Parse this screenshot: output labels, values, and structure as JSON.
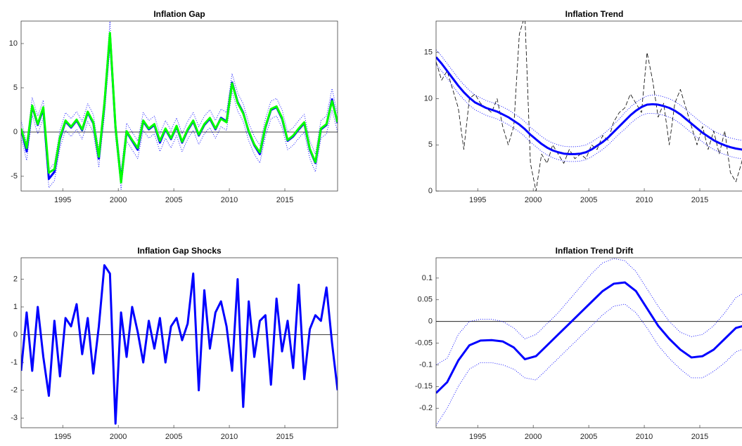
{
  "chart_data": [
    {
      "type": "line",
      "title": "Inflation Gap",
      "x": [
        1991.25,
        1991.75,
        1992.25,
        1992.75,
        1993.25,
        1993.75,
        1994.25,
        1994.75,
        1995.25,
        1995.75,
        1996.25,
        1996.75,
        1997.25,
        1997.75,
        1998.25,
        1998.75,
        1999.25,
        1999.75,
        2000.25,
        2000.75,
        2001.25,
        2001.75,
        2002.25,
        2002.75,
        2003.25,
        2003.75,
        2004.25,
        2004.75,
        2005.25,
        2005.75,
        2006.25,
        2006.75,
        2007.25,
        2007.75,
        2008.25,
        2008.75,
        2009.25,
        2009.75,
        2010.25,
        2010.75,
        2011.25,
        2011.75,
        2012.25,
        2012.75,
        2013.25,
        2013.75,
        2014.25,
        2014.75,
        2015.25,
        2015.75,
        2016.25,
        2016.75,
        2017.25,
        2017.75,
        2018.25,
        2018.75,
        2019.25,
        2019.75
      ],
      "series": [
        {
          "color": "#0000ff",
          "style": "dotted",
          "values": [
            1.3,
            -1.2,
            3.9,
            1.8,
            3.6,
            -4.3,
            -3.5,
            0.2,
            2.2,
            1.5,
            2.3,
            1.2,
            3.2,
            2.0,
            -2.0,
            4.2,
            12.5,
            1.5,
            -4.5,
            1.0,
            0.0,
            -1.0,
            2.2,
            1.3,
            1.8,
            -0.2,
            1.3,
            0.2,
            1.6,
            -0.2,
            1.2,
            2.2,
            0.6,
            1.8,
            2.5,
            1.3,
            2.6,
            2.2,
            6.6,
            4.4,
            3.2,
            1.0,
            -0.5,
            -1.5,
            1.5,
            3.5,
            3.8,
            2.5,
            0.0,
            0.5,
            1.3,
            2.0,
            -1.0,
            -2.5,
            1.3,
            1.8,
            4.9,
            2.0
          ]
        },
        {
          "color": "#0000ff",
          "style": "dotted",
          "values": [
            -0.7,
            -3.2,
            1.9,
            -0.2,
            1.6,
            -6.3,
            -5.5,
            -1.8,
            0.2,
            -0.5,
            0.3,
            -0.8,
            1.2,
            0.0,
            -4.0,
            1.8,
            9.5,
            -0.5,
            -6.5,
            -1.0,
            -2.0,
            -3.0,
            0.2,
            -0.7,
            -0.2,
            -2.2,
            -0.7,
            -1.8,
            -0.4,
            -2.2,
            -0.8,
            0.2,
            -1.4,
            -0.2,
            0.5,
            -0.7,
            0.6,
            0.2,
            4.6,
            2.4,
            1.2,
            -1.0,
            -2.5,
            -3.5,
            -0.5,
            1.5,
            1.8,
            0.5,
            -2.0,
            -1.5,
            -0.7,
            0.0,
            -3.0,
            -4.5,
            -0.7,
            -0.2,
            2.5,
            0.0
          ]
        },
        {
          "color": "#0000ff",
          "style": "thick",
          "values": [
            0.3,
            -2.2,
            2.9,
            0.8,
            2.6,
            -5.3,
            -4.5,
            -0.8,
            1.2,
            0.5,
            1.3,
            0.2,
            2.2,
            1.0,
            -3.0,
            3.0,
            11.0,
            0.5,
            -5.5,
            0.0,
            -1.0,
            -2.0,
            1.2,
            0.3,
            0.8,
            -1.2,
            0.3,
            -0.8,
            0.6,
            -1.2,
            0.2,
            1.2,
            -0.4,
            0.8,
            1.5,
            0.3,
            1.6,
            1.2,
            5.6,
            3.4,
            2.2,
            0.0,
            -1.5,
            -2.5,
            0.5,
            2.5,
            2.8,
            1.5,
            -1.0,
            -0.5,
            0.3,
            1.0,
            -2.0,
            -3.5,
            0.3,
            0.8,
            3.7,
            1.0
          ]
        },
        {
          "color": "#00ff00",
          "style": "thick",
          "values": [
            0.4,
            -1.8,
            3.0,
            0.9,
            2.8,
            -4.6,
            -4.2,
            -0.6,
            1.3,
            0.6,
            1.4,
            0.3,
            2.3,
            1.1,
            -2.8,
            3.2,
            11.2,
            0.6,
            -5.7,
            0.1,
            -0.9,
            -1.8,
            1.3,
            0.4,
            0.9,
            -1.0,
            0.4,
            -0.7,
            0.7,
            -1.1,
            0.3,
            1.3,
            -0.3,
            0.9,
            1.6,
            0.4,
            1.5,
            1.1,
            5.5,
            3.3,
            2.1,
            0.1,
            -1.4,
            -2.3,
            0.6,
            2.6,
            2.9,
            1.6,
            -0.9,
            -0.4,
            0.4,
            1.1,
            -1.9,
            -3.4,
            0.4,
            0.9,
            3.5,
            1.1
          ]
        }
      ],
      "xlim": [
        1991.25,
        2019.75
      ],
      "xticks": [
        1995,
        2000,
        2005,
        2010,
        2015
      ],
      "ylim": [
        -6.67,
        12.54
      ],
      "yticks": [
        -5,
        0,
        5,
        10
      ],
      "zero_line": true
    },
    {
      "type": "line",
      "title": "Inflation Trend",
      "x": [
        1991.25,
        1991.75,
        1992.25,
        1992.75,
        1993.25,
        1993.75,
        1994.25,
        1994.75,
        1995.25,
        1995.75,
        1996.25,
        1996.75,
        1997.25,
        1997.75,
        1998.25,
        1998.75,
        1999.25,
        1999.75,
        2000.25,
        2000.75,
        2001.25,
        2001.75,
        2002.25,
        2002.75,
        2003.25,
        2003.75,
        2004.25,
        2004.75,
        2005.25,
        2005.75,
        2006.25,
        2006.75,
        2007.25,
        2007.75,
        2008.25,
        2008.75,
        2009.25,
        2009.75,
        2010.25,
        2010.75,
        2011.25,
        2011.75,
        2012.25,
        2012.75,
        2013.25,
        2013.75,
        2014.25,
        2014.75,
        2015.25,
        2015.75,
        2016.25,
        2016.75,
        2017.25,
        2017.75,
        2018.25,
        2018.75,
        2019.25,
        2019.75
      ],
      "series": [
        {
          "color": "#000000",
          "style": "dashed",
          "values": [
            14.0,
            12.0,
            13.0,
            11.0,
            9.0,
            4.5,
            10.0,
            10.5,
            9.5,
            9.0,
            8.5,
            10.0,
            7.0,
            5.0,
            7.0,
            17.0,
            19.0,
            3.0,
            0.0,
            4.0,
            3.0,
            5.0,
            4.0,
            3.0,
            4.5,
            3.5,
            4.0,
            3.5,
            5.0,
            4.5,
            6.0,
            5.5,
            7.5,
            8.5,
            9.0,
            10.5,
            9.5,
            8.5,
            15.0,
            12.0,
            8.0,
            9.5,
            5.0,
            9.5,
            11.0,
            9.0,
            7.0,
            5.0,
            7.0,
            4.5,
            6.5,
            4.0,
            6.5,
            2.0,
            1.0,
            3.0,
            5.5,
            5.0
          ]
        },
        {
          "color": "#0000ff",
          "style": "dotted",
          "values": [
            15.3,
            14.6,
            13.8,
            13.0,
            12.2,
            11.5,
            10.9,
            10.4,
            10.1,
            9.8,
            9.6,
            9.4,
            9.1,
            8.8,
            8.4,
            8.0,
            7.5,
            6.9,
            6.4,
            5.9,
            5.5,
            5.2,
            5.0,
            4.85,
            4.8,
            4.8,
            4.85,
            5.0,
            5.3,
            5.7,
            6.1,
            6.6,
            7.2,
            7.8,
            8.5,
            9.1,
            9.6,
            10.0,
            10.3,
            10.4,
            10.35,
            10.2,
            10.0,
            9.7,
            9.3,
            8.8,
            8.3,
            7.8,
            7.3,
            6.9,
            6.5,
            6.2,
            5.95,
            5.75,
            5.6,
            5.5,
            5.45,
            5.4
          ]
        },
        {
          "color": "#0000ff",
          "style": "dotted",
          "values": [
            13.7,
            13.0,
            12.2,
            11.4,
            10.6,
            9.9,
            9.3,
            8.8,
            8.5,
            8.2,
            8.0,
            7.8,
            7.5,
            7.2,
            6.8,
            6.4,
            5.9,
            5.3,
            4.8,
            4.3,
            3.9,
            3.6,
            3.4,
            3.25,
            3.2,
            3.2,
            3.25,
            3.4,
            3.7,
            4.1,
            4.5,
            5.0,
            5.6,
            6.2,
            6.7,
            7.3,
            7.8,
            8.2,
            8.4,
            8.4,
            8.35,
            8.2,
            8.0,
            7.7,
            7.3,
            6.8,
            6.3,
            5.8,
            5.3,
            4.9,
            4.5,
            4.2,
            3.95,
            3.75,
            3.6,
            3.5,
            3.45,
            3.4
          ]
        },
        {
          "color": "#0000ff",
          "style": "thick",
          "values": [
            14.5,
            13.8,
            13.0,
            12.2,
            11.4,
            10.7,
            10.1,
            9.6,
            9.3,
            9.0,
            8.8,
            8.6,
            8.3,
            8.0,
            7.6,
            7.2,
            6.7,
            6.1,
            5.6,
            5.1,
            4.7,
            4.4,
            4.2,
            4.05,
            4.0,
            4.0,
            4.05,
            4.2,
            4.5,
            4.9,
            5.3,
            5.8,
            6.4,
            7.0,
            7.6,
            8.2,
            8.7,
            9.1,
            9.35,
            9.4,
            9.35,
            9.2,
            9.0,
            8.7,
            8.3,
            7.8,
            7.3,
            6.8,
            6.3,
            5.9,
            5.5,
            5.2,
            4.95,
            4.75,
            4.6,
            4.5,
            4.45,
            4.4
          ]
        }
      ],
      "xlim": [
        1991.25,
        2019.75
      ],
      "xticks": [
        1995,
        2000,
        2005,
        2010,
        2015
      ],
      "ylim": [
        0,
        18.4
      ],
      "yticks": [
        0,
        5,
        10,
        15
      ],
      "zero_line": false
    },
    {
      "type": "line",
      "title": "Inflation Gap Shocks",
      "x": [
        1991.25,
        1991.75,
        1992.25,
        1992.75,
        1993.25,
        1993.75,
        1994.25,
        1994.75,
        1995.25,
        1995.75,
        1996.25,
        1996.75,
        1997.25,
        1997.75,
        1998.25,
        1998.75,
        1999.25,
        1999.75,
        2000.25,
        2000.75,
        2001.25,
        2001.75,
        2002.25,
        2002.75,
        2003.25,
        2003.75,
        2004.25,
        2004.75,
        2005.25,
        2005.75,
        2006.25,
        2006.75,
        2007.25,
        2007.75,
        2008.25,
        2008.75,
        2009.25,
        2009.75,
        2010.25,
        2010.75,
        2011.25,
        2011.75,
        2012.25,
        2012.75,
        2013.25,
        2013.75,
        2014.25,
        2014.75,
        2015.25,
        2015.75,
        2016.25,
        2016.75,
        2017.25,
        2017.75,
        2018.25,
        2018.75,
        2019.25,
        2019.75
      ],
      "series": [
        {
          "color": "#0000ff",
          "style": "thick",
          "values": [
            -1.3,
            0.8,
            -1.3,
            1.0,
            -0.8,
            -2.2,
            0.5,
            -1.5,
            0.6,
            0.3,
            1.1,
            -0.7,
            0.6,
            -1.4,
            0.3,
            2.5,
            2.2,
            -3.2,
            0.8,
            -0.8,
            1.0,
            0.1,
            -1.0,
            0.5,
            -0.5,
            0.6,
            -1.0,
            0.3,
            0.6,
            -0.2,
            0.4,
            2.2,
            -2.0,
            1.6,
            -0.5,
            0.8,
            1.2,
            0.3,
            -1.3,
            2.0,
            -2.6,
            1.2,
            -0.8,
            0.5,
            0.7,
            -1.8,
            1.3,
            -0.6,
            0.5,
            -1.2,
            1.8,
            -1.6,
            0.2,
            0.7,
            0.5,
            1.7,
            -0.3,
            -2.0
          ]
        }
      ],
      "xlim": [
        1991.25,
        2019.75
      ],
      "xticks": [
        1995,
        2000,
        2005,
        2010,
        2015
      ],
      "ylim": [
        -3.35,
        2.77
      ],
      "yticks": [
        -3,
        -2,
        -1,
        0,
        1,
        2
      ],
      "zero_line": true
    },
    {
      "type": "line",
      "title": "Inflation Trend Drift",
      "x": [
        1991.25,
        1992.25,
        1993.25,
        1994.25,
        1995.25,
        1996.25,
        1997.25,
        1998.25,
        1999.25,
        2000.25,
        2001.25,
        2002.25,
        2003.25,
        2004.25,
        2005.25,
        2006.25,
        2007.25,
        2008.25,
        2009.25,
        2010.25,
        2011.25,
        2012.25,
        2013.25,
        2014.25,
        2015.25,
        2016.25,
        2017.25,
        2018.25,
        2019.25
      ],
      "series": [
        {
          "color": "#0000ff",
          "style": "dotted",
          "values": [
            -0.1,
            -0.085,
            -0.03,
            0.0,
            0.005,
            0.005,
            0.0,
            -0.015,
            -0.04,
            -0.03,
            -0.005,
            0.02,
            0.05,
            0.08,
            0.11,
            0.135,
            0.145,
            0.14,
            0.115,
            0.075,
            0.035,
            0.0,
            -0.025,
            -0.035,
            -0.03,
            -0.01,
            0.02,
            0.055,
            0.07
          ]
        },
        {
          "color": "#0000ff",
          "style": "dotted",
          "values": [
            -0.24,
            -0.2,
            -0.15,
            -0.11,
            -0.095,
            -0.095,
            -0.1,
            -0.11,
            -0.13,
            -0.135,
            -0.11,
            -0.085,
            -0.06,
            -0.035,
            -0.01,
            0.015,
            0.035,
            0.04,
            0.02,
            -0.015,
            -0.055,
            -0.085,
            -0.11,
            -0.13,
            -0.13,
            -0.115,
            -0.095,
            -0.07,
            -0.06
          ]
        },
        {
          "color": "#0000ff",
          "style": "thick",
          "values": [
            -0.165,
            -0.14,
            -0.09,
            -0.055,
            -0.044,
            -0.043,
            -0.046,
            -0.06,
            -0.087,
            -0.08,
            -0.055,
            -0.03,
            -0.005,
            0.02,
            0.045,
            0.07,
            0.087,
            0.09,
            0.07,
            0.03,
            -0.01,
            -0.04,
            -0.065,
            -0.083,
            -0.08,
            -0.065,
            -0.04,
            -0.015,
            -0.008
          ]
        }
      ],
      "xlim": [
        1991.25,
        2019.75
      ],
      "xticks": [
        1995,
        2000,
        2005,
        2010,
        2015
      ],
      "ylim": [
        -0.245,
        0.1468
      ],
      "yticks": [
        -0.2,
        -0.15,
        -0.1,
        -0.05,
        0,
        0.05,
        0.1
      ],
      "zero_line": true
    }
  ]
}
